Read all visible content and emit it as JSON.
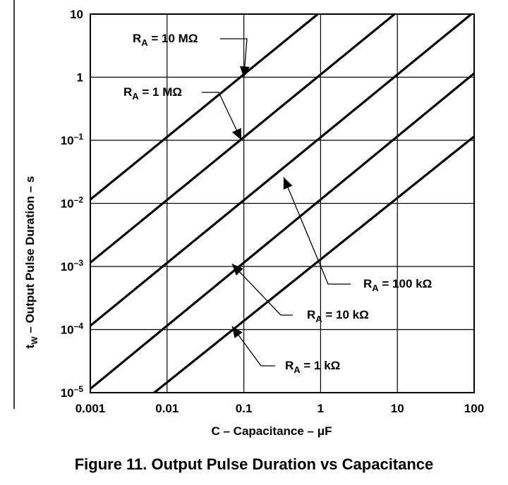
{
  "figure_caption": "Figure 11. Output Pulse Duration vs Capacitance",
  "chart_data": {
    "type": "line",
    "x_scale": "log",
    "y_scale": "log",
    "xlim": [
      0.001,
      100
    ],
    "ylim": [
      1e-05,
      10
    ],
    "grid": true,
    "xlabel": "C – Capacitance – μF",
    "ylabel": {
      "pre": "t",
      "sub": "W",
      "post": " – Output Pulse Duration – s"
    },
    "x_ticks": [
      {
        "v": 0.001,
        "label": "0.001"
      },
      {
        "v": 0.01,
        "label": "0.01"
      },
      {
        "v": 0.1,
        "label": "0.1"
      },
      {
        "v": 1,
        "label": "1"
      },
      {
        "v": 10,
        "label": "10"
      },
      {
        "v": 100,
        "label": "100"
      }
    ],
    "y_ticks": [
      {
        "v": 1e-05,
        "base": "10",
        "sup": "–5"
      },
      {
        "v": 0.0001,
        "base": "10",
        "sup": "–4"
      },
      {
        "v": 0.001,
        "base": "10",
        "sup": "–3"
      },
      {
        "v": 0.01,
        "base": "10",
        "sup": "–2"
      },
      {
        "v": 0.1,
        "base": "10",
        "sup": "–1"
      },
      {
        "v": 1,
        "base": "1",
        "sup": ""
      },
      {
        "v": 10,
        "base": "10",
        "sup": ""
      }
    ],
    "series": [
      {
        "name": "R<sub>A</sub> = 10 MΩ",
        "label_main": "R",
        "label_sub": "A",
        "label_rest": " = 10 MΩ",
        "x": [
          0.001,
          0.92
        ],
        "y": [
          0.0115,
          10
        ]
      },
      {
        "name": "R<sub>A</sub> = 1 MΩ",
        "label_main": "R",
        "label_sub": "A",
        "label_rest": " = 1 MΩ",
        "x": [
          0.001,
          9.2
        ],
        "y": [
          0.00115,
          10
        ]
      },
      {
        "name": "R<sub>A</sub> = 100 kΩ",
        "label_main": "R",
        "label_sub": "A",
        "label_rest": " = 100 kΩ",
        "x": [
          0.001,
          92
        ],
        "y": [
          0.000115,
          10
        ]
      },
      {
        "name": "R<sub>A</sub> = 10 kΩ",
        "label_main": "R",
        "label_sub": "A",
        "label_rest": " = 10 kΩ",
        "x": [
          0.001,
          100
        ],
        "y": [
          1.15e-05,
          1.15
        ]
      },
      {
        "name": "R<sub>A</sub> = 1 kΩ",
        "label_main": "R",
        "label_sub": "A",
        "label_rest": " = 1 kΩ",
        "x": [
          0.0068,
          100
        ],
        "y": [
          1e-05,
          0.115
        ]
      }
    ],
    "annotations": [
      {
        "series": 0,
        "text_main": "R",
        "text_sub": "A",
        "text_rest": " = 10 MΩ"
      },
      {
        "series": 1,
        "text_main": "R",
        "text_sub": "A",
        "text_rest": " = 1 MΩ"
      },
      {
        "series": 2,
        "text_main": "R",
        "text_sub": "A",
        "text_rest": " = 100 kΩ"
      },
      {
        "series": 3,
        "text_main": "R",
        "text_sub": "A",
        "text_rest": " = 10 kΩ"
      },
      {
        "series": 4,
        "text_main": "R",
        "text_sub": "A",
        "text_rest": " = 1 kΩ"
      }
    ]
  }
}
